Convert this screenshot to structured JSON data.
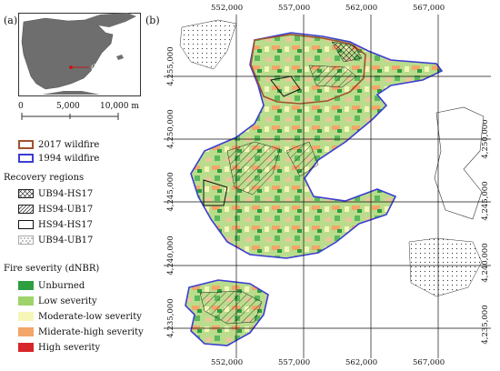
{
  "panels": {
    "a": "(a)",
    "b": "(b)"
  },
  "inset_marker_label": "(b)",
  "scale_bar": {
    "ticks": [
      "0",
      "5,000",
      "10,000 m"
    ]
  },
  "legend": {
    "wildfires": [
      {
        "label": "2017 wildfire",
        "color": "#a0522d"
      },
      {
        "label": "1994 wildfire",
        "color": "#3c3cd2"
      }
    ],
    "recovery_title": "Recovery regions",
    "recovery": [
      {
        "label": "UB94-HS17",
        "pattern": "crosshatch"
      },
      {
        "label": "HS94-UB17",
        "pattern": "diagonal"
      },
      {
        "label": "HS94-HS17",
        "pattern": "outline"
      },
      {
        "label": "UB94-UB17",
        "pattern": "dots"
      }
    ],
    "severity_title": "Fire severity (dNBR)",
    "severity": [
      {
        "label": "Unburned",
        "color": "#2e9e3e"
      },
      {
        "label": "Low severity",
        "color": "#9ed36a"
      },
      {
        "label": "Moderate-low severity",
        "color": "#f6f6b8"
      },
      {
        "label": "Miderate-high severity",
        "color": "#f2a66a"
      },
      {
        "label": "High severity",
        "color": "#d7262a"
      }
    ]
  },
  "easting_labels": [
    "552,000",
    "557,000",
    "562,000",
    "567,000"
  ],
  "northing_labels_left": [
    "4,255,000",
    "4,250,000",
    "4,245,000",
    "4,240,000",
    "4,235,000"
  ],
  "northing_labels_right": [
    "4,250,000",
    "4,245,000",
    "4,240,000",
    "4,235,000"
  ]
}
